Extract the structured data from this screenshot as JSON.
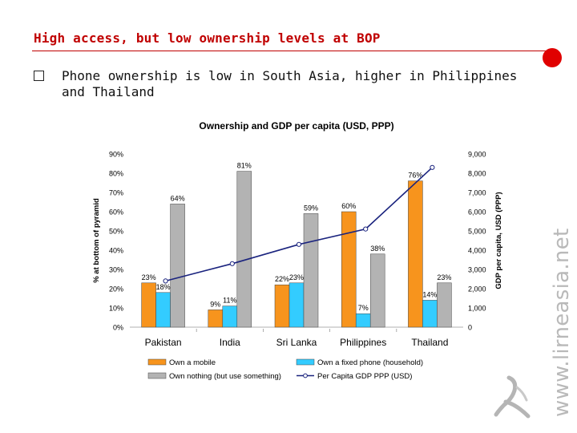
{
  "slide": {
    "title": "High access, but low ownership levels at BOP",
    "bullet": "Phone ownership is low in South Asia, higher in Philippines and Thailand"
  },
  "watermark": "www.lirneasia.net",
  "icons": {
    "bullet": "square-bullet-icon",
    "logo": "lirneasia-logo-icon"
  },
  "colors": {
    "title": "#c00000",
    "mobile": "#f7941d",
    "fixed": "#33ccff",
    "nothing": "#b3b3b3",
    "gdp": "#1a237e"
  },
  "chart_data": {
    "type": "bar",
    "title": "Ownership and GDP per capita (USD, PPP)",
    "ylabel": "% at bottom of pyramid",
    "y2label": "GDP per capita, USD (PPP)",
    "ylim": [
      0,
      90
    ],
    "y2lim": [
      0,
      9000
    ],
    "yticks": [
      "0%",
      "10%",
      "20%",
      "30%",
      "40%",
      "50%",
      "60%",
      "70%",
      "80%",
      "90%"
    ],
    "y2ticks": [
      "0",
      "1,000",
      "2,000",
      "3,000",
      "4,000",
      "5,000",
      "6,000",
      "7,000",
      "8,000",
      "9,000"
    ],
    "grid": false,
    "legend_position": "bottom",
    "categories": [
      "Pakistan",
      "India",
      "Sri Lanka",
      "Philippines",
      "Thailand"
    ],
    "series": [
      {
        "name": "Own a mobile",
        "values": [
          23,
          9,
          22,
          60,
          76
        ],
        "labels": [
          "23%",
          "9%",
          "22%",
          "60%",
          "76%"
        ],
        "color": "#f7941d"
      },
      {
        "name": "Own a fixed phone (household)",
        "values": [
          18,
          11,
          23,
          7,
          14
        ],
        "labels": [
          "18%",
          "11%",
          "23%",
          "7%",
          "14%"
        ],
        "color": "#33ccff"
      },
      {
        "name": "Own nothing (but use something)",
        "values": [
          64,
          81,
          59,
          38,
          23
        ],
        "labels": [
          "64%",
          "81%",
          "59%",
          "38%",
          "23%"
        ],
        "color": "#b3b3b3"
      }
    ],
    "line_series": {
      "name": "Per Capita GDP PPP (USD)",
      "values": [
        2400,
        3300,
        4300,
        5100,
        8300
      ],
      "color": "#1a237e"
    }
  }
}
